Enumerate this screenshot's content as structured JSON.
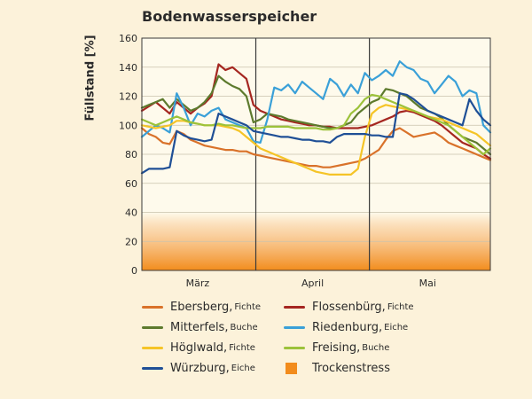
{
  "chart_data": {
    "type": "line",
    "title": "Bodenwasserspeicher",
    "ylabel": "Füllstand [%]",
    "ylim": [
      0,
      160
    ],
    "yticks": [
      0,
      20,
      40,
      60,
      80,
      100,
      120,
      140,
      160
    ],
    "xlim": [
      0,
      100
    ],
    "x_tick_labels": [
      {
        "label": "März",
        "at": 16
      },
      {
        "label": "April",
        "at": 49
      },
      {
        "label": "Mai",
        "at": 82
      }
    ],
    "month_dividers": [
      32.7,
      65.3
    ],
    "stress_band": {
      "label": "Trockenstress",
      "from": 0,
      "to": 40,
      "color": "#f28c1c"
    },
    "grid": true,
    "legend_position": "bottom",
    "series": [
      {
        "name": "Ebersberg",
        "species": "Fichte",
        "color": "#d9722a",
        "x": [
          0,
          2,
          4,
          6,
          8,
          10,
          12,
          14,
          16,
          18,
          20,
          22,
          24,
          26,
          28,
          30,
          32,
          34,
          36,
          38,
          40,
          42,
          44,
          46,
          48,
          50,
          52,
          54,
          56,
          58,
          60,
          62,
          64,
          66,
          68,
          70,
          72,
          74,
          76,
          78,
          80,
          82,
          84,
          86,
          88,
          90,
          92,
          94,
          96,
          98,
          100
        ],
        "y": [
          98,
          94,
          92,
          88,
          87,
          96,
          94,
          90,
          88,
          86,
          85,
          84,
          83,
          83,
          82,
          82,
          80,
          79,
          78,
          77,
          76,
          75,
          74,
          73,
          72,
          72,
          71,
          71,
          72,
          73,
          74,
          75,
          77,
          80,
          83,
          90,
          96,
          98,
          95,
          92,
          93,
          94,
          95,
          92,
          88,
          86,
          84,
          82,
          80,
          78,
          76
        ]
      },
      {
        "name": "Flossenbürg",
        "species": "Fichte",
        "color": "#a52620",
        "x": [
          0,
          2,
          4,
          6,
          8,
          10,
          12,
          14,
          16,
          18,
          20,
          22,
          24,
          26,
          28,
          30,
          32,
          34,
          36,
          38,
          40,
          42,
          44,
          46,
          48,
          50,
          52,
          54,
          56,
          58,
          60,
          62,
          64,
          66,
          68,
          70,
          72,
          74,
          76,
          78,
          80,
          82,
          84,
          86,
          88,
          90,
          92,
          94,
          96,
          98,
          100
        ],
        "y": [
          110,
          113,
          116,
          112,
          108,
          116,
          112,
          108,
          112,
          115,
          120,
          142,
          138,
          140,
          136,
          132,
          114,
          110,
          108,
          106,
          104,
          103,
          102,
          101,
          100,
          100,
          99,
          99,
          98,
          98,
          98,
          98,
          99,
          100,
          102,
          104,
          106,
          109,
          110,
          109,
          107,
          105,
          103,
          100,
          96,
          92,
          88,
          86,
          84,
          80,
          77
        ]
      },
      {
        "name": "Mitterfels",
        "species": "Buche",
        "color": "#5d7a2d",
        "x": [
          0,
          2,
          4,
          6,
          8,
          10,
          12,
          14,
          16,
          18,
          20,
          22,
          24,
          26,
          28,
          30,
          32,
          34,
          36,
          38,
          40,
          42,
          44,
          46,
          48,
          50,
          52,
          54,
          56,
          58,
          60,
          62,
          64,
          66,
          68,
          70,
          72,
          74,
          76,
          78,
          80,
          82,
          84,
          86,
          88,
          90,
          92,
          94,
          96,
          98,
          100
        ],
        "y": [
          112,
          114,
          116,
          118,
          112,
          118,
          114,
          110,
          112,
          116,
          122,
          134,
          130,
          127,
          125,
          120,
          102,
          104,
          108,
          107,
          106,
          104,
          103,
          102,
          101,
          100,
          99,
          98,
          98,
          100,
          102,
          108,
          112,
          116,
          118,
          125,
          124,
          122,
          120,
          116,
          112,
          110,
          108,
          105,
          100,
          96,
          92,
          90,
          88,
          84,
          80
        ]
      },
      {
        "name": "Riedenburg",
        "species": "Eiche",
        "color": "#3aa0d8",
        "x": [
          0,
          2,
          4,
          6,
          8,
          10,
          12,
          14,
          16,
          18,
          20,
          22,
          24,
          26,
          28,
          30,
          32,
          34,
          36,
          38,
          40,
          42,
          44,
          46,
          48,
          50,
          52,
          54,
          56,
          58,
          60,
          62,
          64,
          66,
          68,
          70,
          72,
          74,
          76,
          78,
          80,
          82,
          84,
          86,
          88,
          90,
          92,
          94,
          96,
          98,
          100
        ],
        "y": [
          92,
          96,
          100,
          98,
          95,
          122,
          112,
          100,
          108,
          106,
          110,
          112,
          104,
          102,
          100,
          98,
          89,
          88,
          104,
          126,
          124,
          128,
          122,
          130,
          126,
          122,
          118,
          132,
          128,
          120,
          128,
          122,
          136,
          131,
          134,
          138,
          134,
          144,
          140,
          138,
          132,
          130,
          122,
          128,
          134,
          130,
          120,
          124,
          122,
          100,
          95
        ]
      },
      {
        "name": "Höglwald",
        "species": "Fichte",
        "color": "#f5c427",
        "x": [
          0,
          2,
          4,
          6,
          8,
          10,
          12,
          14,
          16,
          18,
          20,
          22,
          24,
          26,
          28,
          30,
          32,
          34,
          36,
          38,
          40,
          42,
          44,
          46,
          48,
          50,
          52,
          54,
          56,
          58,
          60,
          62,
          64,
          66,
          68,
          70,
          72,
          74,
          76,
          78,
          80,
          82,
          84,
          86,
          88,
          90,
          92,
          94,
          96,
          98,
          100
        ],
        "y": [
          100,
          99,
          98,
          99,
          100,
          103,
          103,
          102,
          101,
          100,
          100,
          100,
          99,
          98,
          96,
          92,
          88,
          84,
          82,
          80,
          78,
          76,
          74,
          72,
          70,
          68,
          67,
          66,
          66,
          66,
          66,
          70,
          92,
          108,
          112,
          114,
          113,
          112,
          111,
          110,
          108,
          106,
          105,
          104,
          102,
          100,
          98,
          96,
          94,
          90,
          86
        ]
      },
      {
        "name": "Freising",
        "species": "Buche",
        "color": "#9cc23a",
        "x": [
          0,
          2,
          4,
          6,
          8,
          10,
          12,
          14,
          16,
          18,
          20,
          22,
          24,
          26,
          28,
          30,
          32,
          34,
          36,
          38,
          40,
          42,
          44,
          46,
          48,
          50,
          52,
          54,
          56,
          58,
          60,
          62,
          64,
          66,
          68,
          70,
          72,
          74,
          76,
          78,
          80,
          82,
          84,
          86,
          88,
          90,
          92,
          94,
          96,
          98,
          100
        ],
        "y": [
          104,
          102,
          100,
          102,
          104,
          106,
          104,
          102,
          101,
          100,
          100,
          101,
          100,
          100,
          99,
          98,
          98,
          98,
          99,
          99,
          99,
          99,
          98,
          98,
          98,
          98,
          97,
          97,
          98,
          100,
          108,
          112,
          118,
          121,
          120,
          118,
          116,
          114,
          112,
          110,
          108,
          106,
          104,
          102,
          100,
          96,
          92,
          88,
          84,
          80,
          84
        ]
      },
      {
        "name": "Würzburg",
        "species": "Eiche",
        "color": "#1f4f96",
        "x": [
          0,
          2,
          4,
          6,
          8,
          10,
          12,
          14,
          16,
          18,
          20,
          22,
          24,
          26,
          28,
          30,
          32,
          34,
          36,
          38,
          40,
          42,
          44,
          46,
          48,
          50,
          52,
          54,
          56,
          58,
          60,
          62,
          64,
          66,
          68,
          70,
          72,
          74,
          76,
          78,
          80,
          82,
          84,
          86,
          88,
          90,
          92,
          94,
          96,
          98,
          100
        ],
        "y": [
          67,
          70,
          70,
          70,
          71,
          96,
          93,
          91,
          90,
          89,
          90,
          108,
          106,
          104,
          102,
          100,
          96,
          95,
          94,
          93,
          92,
          92,
          91,
          90,
          90,
          89,
          89,
          88,
          92,
          94,
          94,
          94,
          94,
          93,
          93,
          92,
          92,
          122,
          121,
          118,
          114,
          110,
          108,
          106,
          104,
          102,
          100,
          118,
          110,
          104,
          100
        ]
      }
    ]
  }
}
